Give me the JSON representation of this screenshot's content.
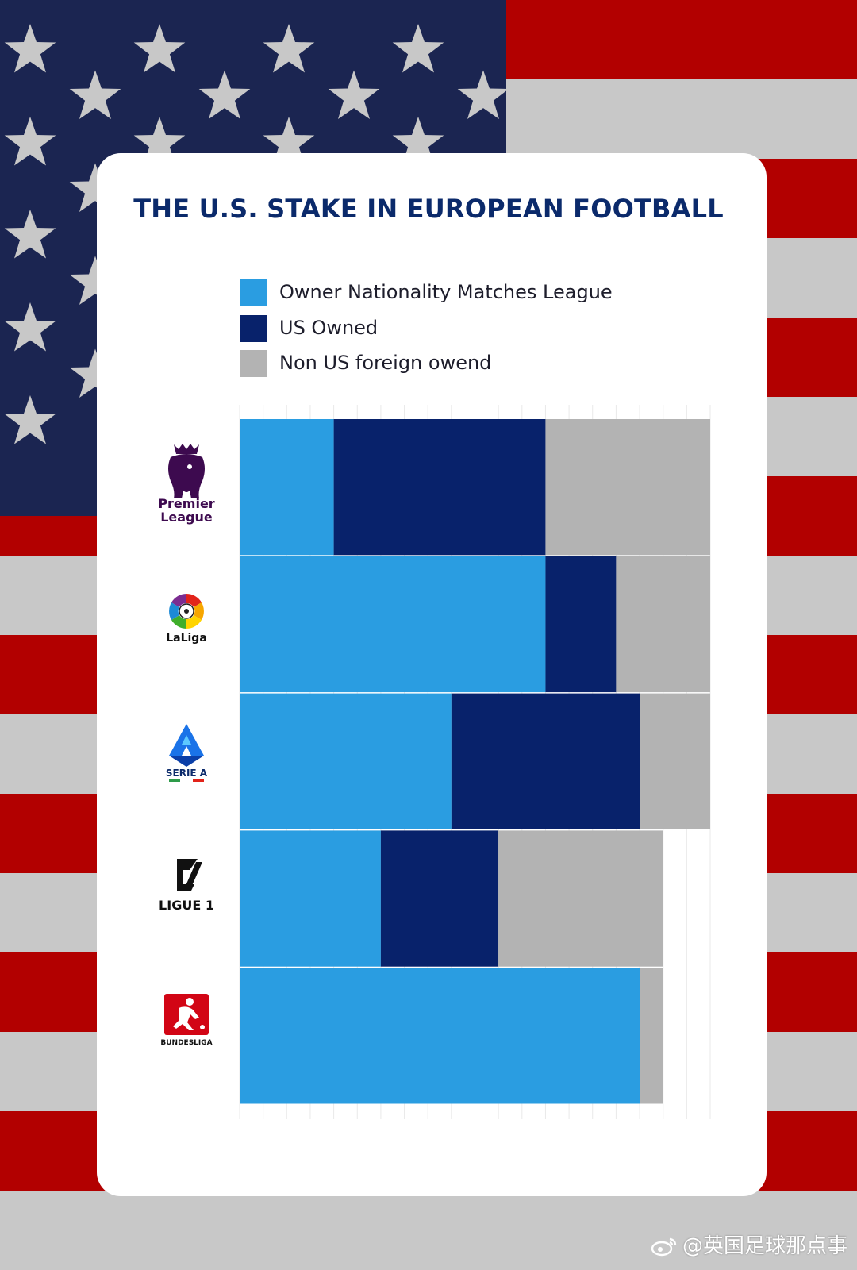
{
  "title": "THE U.S. STAKE IN EUROPEAN FOOTBALL",
  "legend": [
    {
      "label": "Owner Nationality Matches League",
      "color": "#2a9de1"
    },
    {
      "label": "US Owned",
      "color": "#08226b"
    },
    {
      "label": "Non US foreign owend",
      "color": "#b3b3b3"
    }
  ],
  "logos": [
    {
      "icon": "premier-league-lion-icon",
      "text_line1": "Premier",
      "text_line2": "League"
    },
    {
      "icon": "laliga-ball-icon",
      "text": "LaLiga"
    },
    {
      "icon": "serie-a-icon",
      "text": "SERIE A"
    },
    {
      "icon": "ligue-1-icon",
      "text": "LIGUE 1"
    },
    {
      "icon": "bundesliga-player-icon",
      "text": "BUNDESLIGA"
    }
  ],
  "watermark": "@英国足球那点事",
  "colors": {
    "flag_red": "#b20000",
    "flag_white": "#c8c8c8",
    "flag_blue": "#1b2551",
    "star": "#c8c8c8",
    "title": "#0b2a6b"
  },
  "chart_data": {
    "type": "bar",
    "orientation": "horizontal",
    "stacked": true,
    "categories": [
      "Premier League",
      "LaLiga",
      "Serie A",
      "Ligue 1",
      "Bundesliga"
    ],
    "series": [
      {
        "name": "Owner Nationality Matches League",
        "values": [
          4,
          13,
          9,
          6,
          17
        ]
      },
      {
        "name": "US Owned",
        "values": [
          9,
          3,
          8,
          5,
          0
        ]
      },
      {
        "name": "Non US foreign owend",
        "values": [
          7,
          4,
          3,
          7,
          1
        ]
      }
    ],
    "xlim": [
      0,
      20
    ],
    "grid": true,
    "axis_labels": false,
    "legend_position": "top"
  }
}
